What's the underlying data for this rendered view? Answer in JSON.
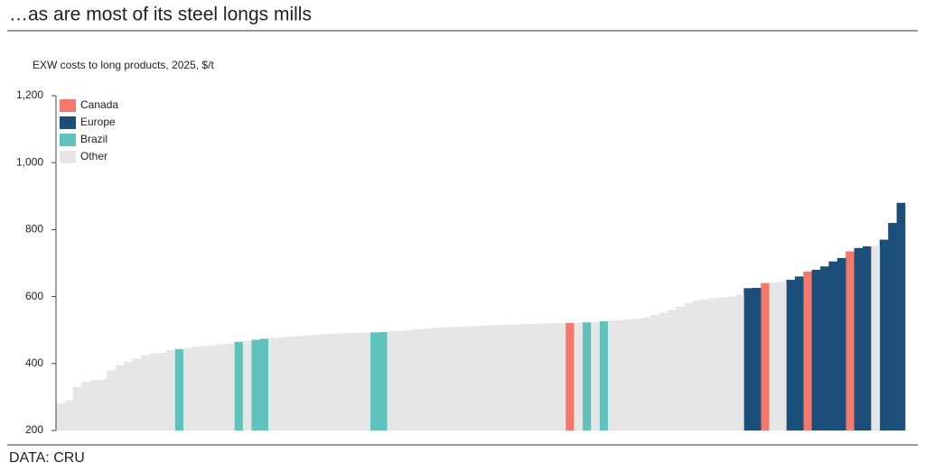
{
  "chart_data": {
    "type": "bar",
    "title": "…as are most of its steel longs mills",
    "subtitle": "EXW costs to long products, 2025, $/t",
    "source": "DATA: CRU",
    "ylim": [
      200,
      1200
    ],
    "yticks": [
      200,
      400,
      600,
      800,
      {
        "value": 1000,
        "label": "1,000"
      },
      {
        "value": 1200,
        "label": "1,200"
      }
    ],
    "legend": "top-left",
    "series": [
      {
        "name": "Canada",
        "color": "#f4786b",
        "values": [
          null,
          null,
          null,
          null,
          null,
          null,
          null,
          null,
          null,
          null,
          null,
          null,
          null,
          null,
          null,
          null,
          null,
          null,
          null,
          null,
          null,
          null,
          null,
          null,
          null,
          null,
          null,
          null,
          null,
          null,
          null,
          null,
          null,
          null,
          null,
          null,
          null,
          null,
          null,
          null,
          null,
          null,
          null,
          null,
          null,
          null,
          null,
          null,
          null,
          null,
          null,
          null,
          null,
          null,
          null,
          null,
          null,
          null,
          null,
          null,
          521,
          null,
          null,
          null,
          null,
          null,
          null,
          null,
          null,
          null,
          null,
          null,
          null,
          null,
          null,
          null,
          null,
          null,
          null,
          null,
          null,
          null,
          null,
          640,
          null,
          null,
          null,
          null,
          675,
          null,
          null,
          null,
          null,
          735,
          null,
          null,
          null,
          null,
          null,
          null
        ]
      },
      {
        "name": "Europe",
        "color": "#1b4f7a",
        "values": [
          null,
          null,
          null,
          null,
          null,
          null,
          null,
          null,
          null,
          null,
          null,
          null,
          null,
          null,
          null,
          null,
          null,
          null,
          null,
          null,
          null,
          null,
          null,
          null,
          null,
          null,
          null,
          null,
          null,
          null,
          null,
          null,
          null,
          null,
          null,
          null,
          null,
          null,
          null,
          null,
          null,
          null,
          null,
          null,
          null,
          null,
          null,
          null,
          null,
          null,
          null,
          null,
          null,
          null,
          null,
          null,
          null,
          null,
          null,
          null,
          null,
          null,
          null,
          null,
          null,
          null,
          null,
          null,
          null,
          null,
          null,
          null,
          null,
          null,
          null,
          null,
          null,
          null,
          null,
          null,
          null,
          625,
          626,
          null,
          null,
          null,
          650,
          660,
          null,
          680,
          690,
          705,
          715,
          null,
          745,
          750,
          null,
          770,
          820,
          880
        ]
      },
      {
        "name": "Brazil",
        "color": "#5fc3bb",
        "values": [
          null,
          null,
          null,
          null,
          null,
          null,
          null,
          null,
          null,
          null,
          null,
          null,
          null,
          null,
          443,
          null,
          null,
          null,
          null,
          null,
          null,
          465,
          null,
          471,
          474,
          null,
          null,
          null,
          null,
          null,
          null,
          null,
          null,
          null,
          null,
          null,
          null,
          493,
          494,
          null,
          null,
          null,
          null,
          null,
          null,
          null,
          null,
          null,
          null,
          null,
          null,
          null,
          null,
          null,
          null,
          null,
          null,
          null,
          null,
          null,
          null,
          null,
          523,
          null,
          526,
          null,
          null,
          null,
          null,
          null,
          null,
          null,
          null,
          null,
          null,
          null,
          null,
          null,
          null,
          null,
          null,
          null,
          null,
          null,
          null,
          null,
          null,
          null,
          null,
          null,
          null,
          null,
          null,
          null,
          null,
          null,
          null,
          null,
          null,
          null
        ]
      },
      {
        "name": "Other",
        "color": "#e6e6e6",
        "values": [
          280,
          290,
          330,
          345,
          350,
          352,
          380,
          395,
          405,
          415,
          425,
          430,
          432,
          440,
          null,
          446,
          450,
          452,
          455,
          458,
          460,
          null,
          468,
          null,
          null,
          476,
          478,
          480,
          482,
          484,
          486,
          488,
          489,
          490,
          491,
          492,
          492,
          null,
          null,
          496,
          498,
          500,
          502,
          504,
          506,
          508,
          509,
          510,
          511,
          512,
          513,
          514,
          515,
          516,
          517,
          518,
          519,
          519,
          520,
          520,
          null,
          522,
          null,
          524,
          null,
          528,
          530,
          532,
          534,
          538,
          545,
          552,
          560,
          570,
          580,
          588,
          592,
          595,
          598,
          600,
          605,
          null,
          null,
          null,
          642,
          645,
          null,
          null,
          null,
          null,
          null,
          null,
          null,
          null,
          null,
          null,
          752,
          null,
          null,
          null
        ]
      }
    ]
  }
}
